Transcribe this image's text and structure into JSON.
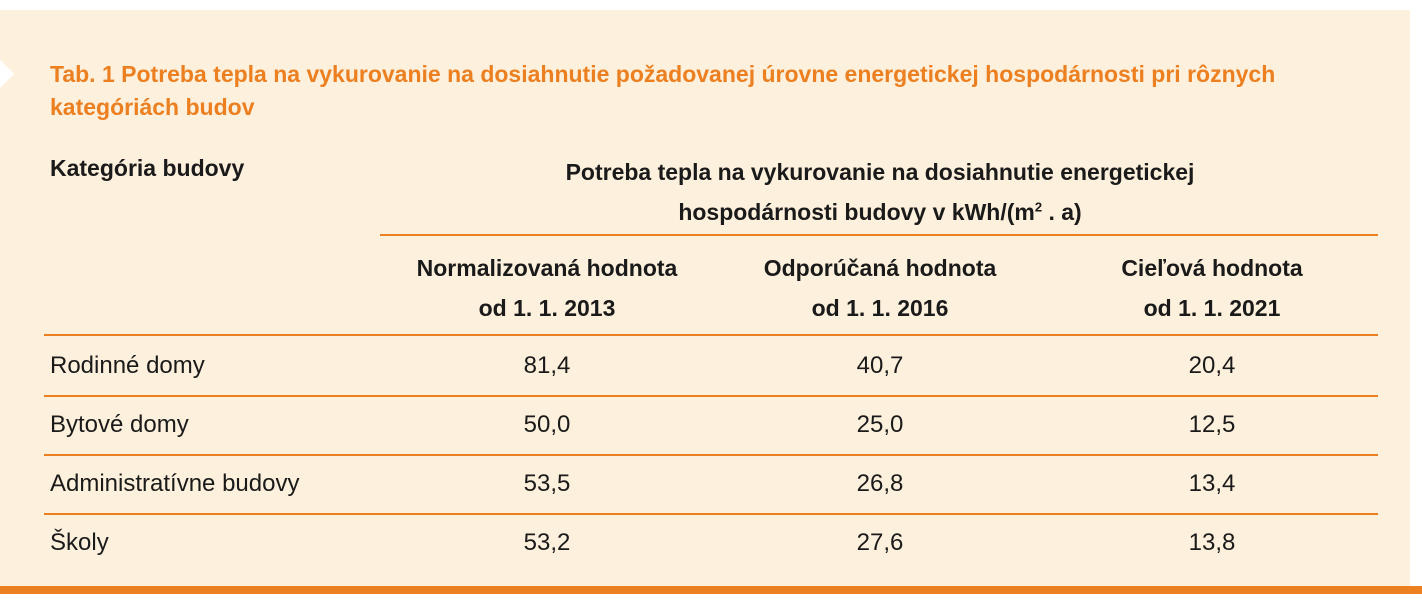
{
  "table": {
    "title": "Tab. 1  Potreba tepla na vykurovanie na dosiahnutie požadovanej úrovne energetickej hospodárnosti pri rôznych kategóriách budov",
    "category_header": "Kategória budovy",
    "group_header_line1": "Potreba tepla na vykurovanie na dosiahnutie energetickej",
    "group_header_line2_pre": "hospodárnosti budovy v kWh/(m",
    "group_header_sup": "2",
    "group_header_line2_post": " . a)",
    "columns": [
      {
        "line1": "Normalizovaná hodnota",
        "line2": "od 1. 1. 2013"
      },
      {
        "line1": "Odporúčaná hodnota",
        "line2": "od 1. 1. 2016"
      },
      {
        "line1": "Cieľová hodnota",
        "line2": "od 1. 1. 2021"
      }
    ],
    "rows": [
      {
        "category": "Rodinné domy",
        "values": [
          "81,4",
          "40,7",
          "20,4"
        ]
      },
      {
        "category": "Bytové domy",
        "values": [
          "50,0",
          "25,0",
          "12,5"
        ]
      },
      {
        "category": "Administratívne budovy",
        "values": [
          "53,5",
          "26,8",
          "13,4"
        ]
      },
      {
        "category": "Školy",
        "values": [
          "53,2",
          "27,6",
          "13,8"
        ]
      }
    ]
  },
  "colors": {
    "accent": "#ec7f1f",
    "background": "#fdf0dc"
  }
}
